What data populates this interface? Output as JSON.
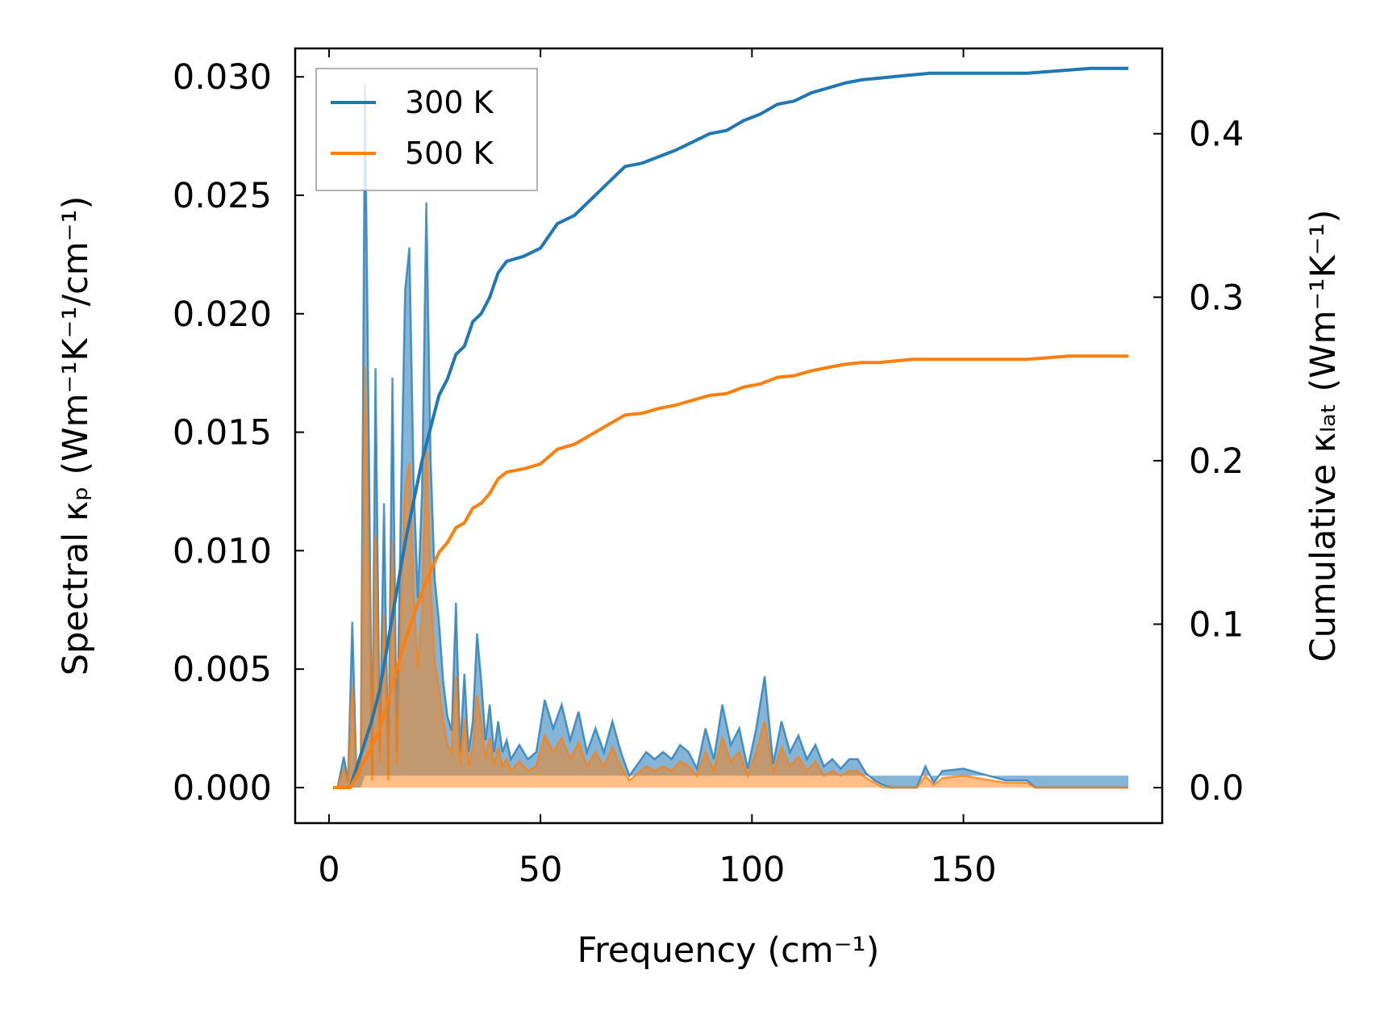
{
  "chart_data": {
    "type": "line",
    "xlabel": "Frequency (cm⁻¹)",
    "ylabel_left": "Spectral κₚ (Wm⁻¹K⁻¹/cm⁻¹)",
    "ylabel_right": "Cumulative κₗₐₜ (Wm⁻¹K⁻¹)",
    "xlim": [
      -8,
      197
    ],
    "ylim_left": [
      -0.0015,
      0.0312
    ],
    "ylim_right": [
      -0.0217,
      0.4522
    ],
    "xticks": [
      {
        "v": 0,
        "label": "0"
      },
      {
        "v": 50,
        "label": "50"
      },
      {
        "v": 100,
        "label": "100"
      },
      {
        "v": 150,
        "label": "150"
      }
    ],
    "yticks_left": [
      {
        "v": 0.0,
        "label": "0.000"
      },
      {
        "v": 0.005,
        "label": "0.005"
      },
      {
        "v": 0.01,
        "label": "0.010"
      },
      {
        "v": 0.015,
        "label": "0.015"
      },
      {
        "v": 0.02,
        "label": "0.020"
      },
      {
        "v": 0.025,
        "label": "0.025"
      },
      {
        "v": 0.03,
        "label": "0.030"
      }
    ],
    "yticks_right": [
      {
        "v": 0.0,
        "label": "0.0"
      },
      {
        "v": 0.1,
        "label": "0.1"
      },
      {
        "v": 0.2,
        "label": "0.2"
      },
      {
        "v": 0.3,
        "label": "0.3"
      },
      {
        "v": 0.4,
        "label": "0.4"
      }
    ],
    "legend": {
      "location": "top-left",
      "entries": [
        "300 K",
        "500 K"
      ]
    },
    "series": [
      {
        "name": "300 K",
        "color": "#1f77b4",
        "spectral": {
          "x": [
            1,
            2,
            3.5,
            4.5,
            5.5,
            6.5,
            7.5,
            8.5,
            9.5,
            10.2,
            11,
            12,
            13,
            14,
            15,
            16,
            17,
            18,
            19,
            20,
            21,
            22,
            23,
            24,
            25,
            26,
            27,
            28,
            29,
            30,
            31,
            32,
            33,
            34,
            35,
            36,
            37,
            38,
            39,
            40,
            41,
            42,
            43,
            45,
            47,
            49,
            51,
            53,
            55,
            57,
            59,
            61,
            63,
            65,
            67,
            69,
            71,
            73,
            75,
            77,
            79,
            81,
            83,
            85,
            87,
            89,
            91,
            93,
            95,
            97,
            99,
            101,
            103,
            105,
            107,
            109,
            111,
            113,
            115,
            117,
            119,
            121,
            123,
            125,
            127,
            129,
            131,
            133,
            135,
            137,
            139,
            141,
            143,
            145,
            150,
            160,
            165,
            167,
            170,
            173,
            176,
            180,
            183,
            186,
            189
          ],
          "y": [
            0,
            0,
            0.0013,
            0.0003,
            0.007,
            0.0005,
            0.001,
            0.0297,
            0.013,
            0.0005,
            0.0177,
            0.0015,
            0.012,
            0.0005,
            0.0173,
            0.0015,
            0.012,
            0.021,
            0.0228,
            0.013,
            0.008,
            0.0125,
            0.0247,
            0.014,
            0.0088,
            0.007,
            0.0045,
            0.003,
            0.0024,
            0.0078,
            0.0015,
            0.0048,
            0.0015,
            0.0028,
            0.0065,
            0.0045,
            0.002,
            0.0035,
            0.0015,
            0.0028,
            0.0015,
            0.002,
            0.0012,
            0.0018,
            0.0012,
            0.0015,
            0.0037,
            0.0025,
            0.0035,
            0.002,
            0.0032,
            0.0015,
            0.0025,
            0.0015,
            0.0028,
            0.0015,
            0.0005,
            0.001,
            0.0015,
            0.0012,
            0.0015,
            0.0012,
            0.0018,
            0.0015,
            0.0008,
            0.0025,
            0.0012,
            0.0035,
            0.0018,
            0.0025,
            0.0008,
            0.0025,
            0.0047,
            0.001,
            0.0028,
            0.0015,
            0.0022,
            0.0012,
            0.0018,
            0.0009,
            0.0012,
            0.0008,
            0.0012,
            0.0012,
            0.0006,
            0.0003,
            0.0001,
            0,
            0,
            0,
            0,
            0.0009,
            0.0002,
            0.0007,
            0.0008,
            0.0003,
            0.0003,
            0,
            0,
            0,
            0,
            0,
            0,
            0,
            0
          ],
          "lower": [
            0,
            0,
            0,
            0,
            0,
            0,
            0,
            0.0005,
            0.0005,
            0.0005,
            0.0005,
            0.0005,
            0.0005,
            0.0005,
            0.0005,
            0.0005,
            0.0005,
            0.0005,
            0.0005,
            0.0005,
            0.0005,
            0.0005,
            0.0005,
            0.0005,
            0.0005,
            0.0005,
            0.0005,
            0.0005,
            0.0005,
            0.0005,
            0.0005,
            0.0005,
            0.0005,
            0.0005,
            0.0005,
            0.0005,
            0.0005,
            0.0005,
            0.0005,
            0.0005,
            0.0005,
            0.0005,
            0.0005,
            0.0005,
            0.0005,
            0.0005,
            0.0005,
            0.0005,
            0.0005,
            0.0005,
            0.0005,
            0.0005,
            0.0005,
            0.0005,
            0.0005,
            0.0005,
            0.0005,
            0.0005,
            0.0005,
            0.0005,
            0.0005,
            0.0005,
            0.0005,
            0.0005,
            0.0005,
            0.0005,
            0.0005,
            0.0005,
            0.0005,
            0.0005,
            0.0005,
            0.0005,
            0.0005,
            0.0005,
            0.0005,
            0.0005,
            0.0005,
            0.0005,
            0.0005,
            0.0005,
            0.0005,
            0.0005,
            0.0005,
            0.0005,
            0.0005,
            0.0005,
            0.0005,
            0.0005,
            0.0005,
            0.0005,
            0.0005,
            0.0005,
            0.0005,
            0.0005,
            0.0005,
            0.0005,
            0.0005,
            0.0005,
            0.0005,
            0.0005,
            0.0005,
            0.0005,
            0.0005,
            0.0005,
            0.0005
          ]
        },
        "cumulative": {
          "x": [
            1,
            5,
            10,
            12,
            14,
            18,
            22,
            26,
            28,
            30,
            32,
            34,
            36,
            38,
            40,
            42,
            46,
            50,
            54,
            58,
            62,
            66,
            70,
            74,
            78,
            82,
            86,
            90,
            94,
            98,
            102,
            106,
            110,
            114,
            118,
            122,
            126,
            130,
            134,
            138,
            142,
            146,
            150,
            155,
            160,
            165,
            170,
            175,
            180,
            185,
            189
          ],
          "y": [
            0,
            0,
            0.04,
            0.06,
            0.09,
            0.15,
            0.2,
            0.24,
            0.25,
            0.265,
            0.27,
            0.285,
            0.29,
            0.3,
            0.315,
            0.322,
            0.325,
            0.33,
            0.345,
            0.35,
            0.36,
            0.37,
            0.38,
            0.382,
            0.386,
            0.39,
            0.395,
            0.4,
            0.402,
            0.408,
            0.412,
            0.418,
            0.42,
            0.425,
            0.428,
            0.431,
            0.433,
            0.434,
            0.435,
            0.436,
            0.437,
            0.437,
            0.437,
            0.437,
            0.437,
            0.437,
            0.438,
            0.439,
            0.44,
            0.44,
            0.44
          ]
        }
      },
      {
        "name": "500 K",
        "color": "#ff7f0e",
        "spectral": {
          "x": [
            1,
            2,
            3.5,
            4.5,
            5.5,
            6.5,
            7.5,
            8.5,
            9.5,
            10.2,
            11,
            12,
            13,
            14,
            15,
            16,
            17,
            18,
            19,
            20,
            21,
            22,
            23,
            24,
            25,
            26,
            27,
            28,
            29,
            30,
            31,
            32,
            33,
            34,
            35,
            36,
            37,
            38,
            39,
            40,
            41,
            42,
            43,
            45,
            47,
            49,
            51,
            53,
            55,
            57,
            59,
            61,
            63,
            65,
            67,
            69,
            71,
            73,
            75,
            77,
            79,
            81,
            83,
            85,
            87,
            89,
            91,
            93,
            95,
            97,
            99,
            101,
            103,
            105,
            107,
            109,
            111,
            113,
            115,
            117,
            119,
            121,
            123,
            125,
            127,
            129,
            131,
            133,
            135,
            137,
            139,
            141,
            143,
            145,
            150,
            160,
            165,
            167,
            170,
            173,
            176,
            180,
            183,
            186,
            189
          ],
          "y": [
            0,
            0,
            0.0008,
            0.0002,
            0.0043,
            0.0003,
            0.0007,
            0.0178,
            0.008,
            0.0003,
            0.0106,
            0.001,
            0.0073,
            0.0003,
            0.0104,
            0.001,
            0.0073,
            0.0126,
            0.0137,
            0.008,
            0.005,
            0.0075,
            0.0148,
            0.0085,
            0.0053,
            0.0042,
            0.0028,
            0.0018,
            0.0015,
            0.0047,
            0.0009,
            0.0029,
            0.0009,
            0.0017,
            0.0039,
            0.0027,
            0.0012,
            0.0021,
            0.0009,
            0.0017,
            0.0009,
            0.0012,
            0.0007,
            0.0011,
            0.0007,
            0.0009,
            0.0022,
            0.0015,
            0.0021,
            0.0012,
            0.0019,
            0.0009,
            0.0015,
            0.0009,
            0.0017,
            0.0009,
            0.0003,
            0.0006,
            0.0009,
            0.0007,
            0.0009,
            0.0007,
            0.0011,
            0.0009,
            0.0005,
            0.0015,
            0.0007,
            0.0021,
            0.0011,
            0.0015,
            0.0005,
            0.0015,
            0.0028,
            0.0006,
            0.0017,
            0.0009,
            0.0013,
            0.0007,
            0.0011,
            0.0005,
            0.0007,
            0.0005,
            0.0007,
            0.0007,
            0.0004,
            0.0002,
            0,
            0,
            0,
            0,
            0,
            0.0005,
            0.0001,
            0.0004,
            0.0005,
            0.0002,
            0.0002,
            0,
            0,
            0,
            0,
            0,
            0,
            0,
            0
          ]
        },
        "cumulative": {
          "x": [
            1,
            5,
            10,
            12,
            14,
            18,
            22,
            26,
            28,
            30,
            32,
            34,
            36,
            38,
            40,
            42,
            46,
            50,
            54,
            58,
            62,
            66,
            70,
            74,
            78,
            82,
            86,
            90,
            94,
            98,
            102,
            106,
            110,
            114,
            118,
            122,
            126,
            130,
            134,
            138,
            142,
            146,
            150,
            155,
            160,
            165,
            170,
            175,
            180,
            185,
            189
          ],
          "y": [
            0,
            0,
            0.024,
            0.036,
            0.054,
            0.09,
            0.12,
            0.144,
            0.15,
            0.159,
            0.162,
            0.171,
            0.174,
            0.18,
            0.189,
            0.193,
            0.195,
            0.198,
            0.207,
            0.21,
            0.216,
            0.222,
            0.228,
            0.229,
            0.232,
            0.234,
            0.237,
            0.24,
            0.241,
            0.245,
            0.247,
            0.251,
            0.252,
            0.255,
            0.257,
            0.259,
            0.26,
            0.26,
            0.261,
            0.262,
            0.262,
            0.262,
            0.262,
            0.262,
            0.262,
            0.262,
            0.263,
            0.264,
            0.264,
            0.264,
            0.264
          ]
        }
      }
    ]
  }
}
